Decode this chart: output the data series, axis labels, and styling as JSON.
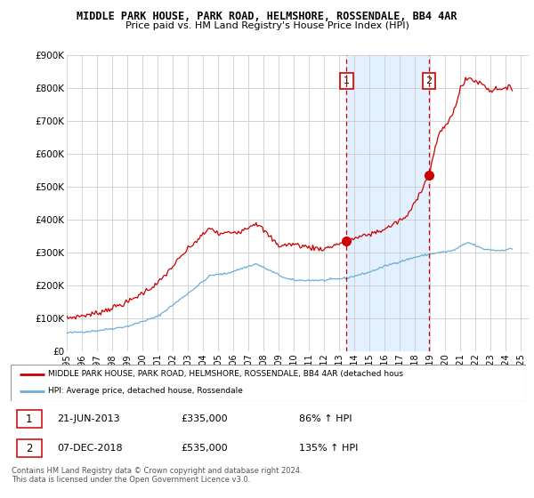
{
  "title": "MIDDLE PARK HOUSE, PARK ROAD, HELMSHORE, ROSSENDALE, BB4 4AR",
  "subtitle": "Price paid vs. HM Land Registry's House Price Index (HPI)",
  "ylim": [
    0,
    900000
  ],
  "yticks": [
    0,
    100000,
    200000,
    300000,
    400000,
    500000,
    600000,
    700000,
    800000,
    900000
  ],
  "ytick_labels": [
    "£0",
    "£100K",
    "£200K",
    "£300K",
    "£400K",
    "£500K",
    "£600K",
    "£700K",
    "£800K",
    "£900K"
  ],
  "background_color": "#ffffff",
  "legend_line1": "MIDDLE PARK HOUSE, PARK ROAD, HELMSHORE, ROSSENDALE, BB4 4AR (detached hous",
  "legend_line2": "HPI: Average price, detached house, Rossendale",
  "annotation1_date": "21-JUN-2013",
  "annotation1_price": "£335,000",
  "annotation1_hpi": "86% ↑ HPI",
  "annotation1_label": "1",
  "annotation1_year": 2013.47,
  "annotation1_value": 335000,
  "annotation2_date": "07-DEC-2018",
  "annotation2_price": "£535,000",
  "annotation2_hpi": "135% ↑ HPI",
  "annotation2_label": "2",
  "annotation2_year": 2018.92,
  "annotation2_value": 535000,
  "footer": "Contains HM Land Registry data © Crown copyright and database right 2024.\nThis data is licensed under the Open Government Licence v3.0.",
  "hpi_color": "#6baed6",
  "price_color": "#cc0000",
  "shaded_color": "#ddeeff",
  "vline_color": "#cc0000",
  "xmin": 1995,
  "xmax": 2025.5,
  "shade_start": 2013.47,
  "shade_end": 2018.92,
  "xtick_years": [
    1995,
    1996,
    1997,
    1998,
    1999,
    2000,
    2001,
    2002,
    2003,
    2004,
    2005,
    2006,
    2007,
    2008,
    2009,
    2010,
    2011,
    2012,
    2013,
    2014,
    2015,
    2016,
    2017,
    2018,
    2019,
    2020,
    2021,
    2022,
    2023,
    2024,
    2025
  ]
}
